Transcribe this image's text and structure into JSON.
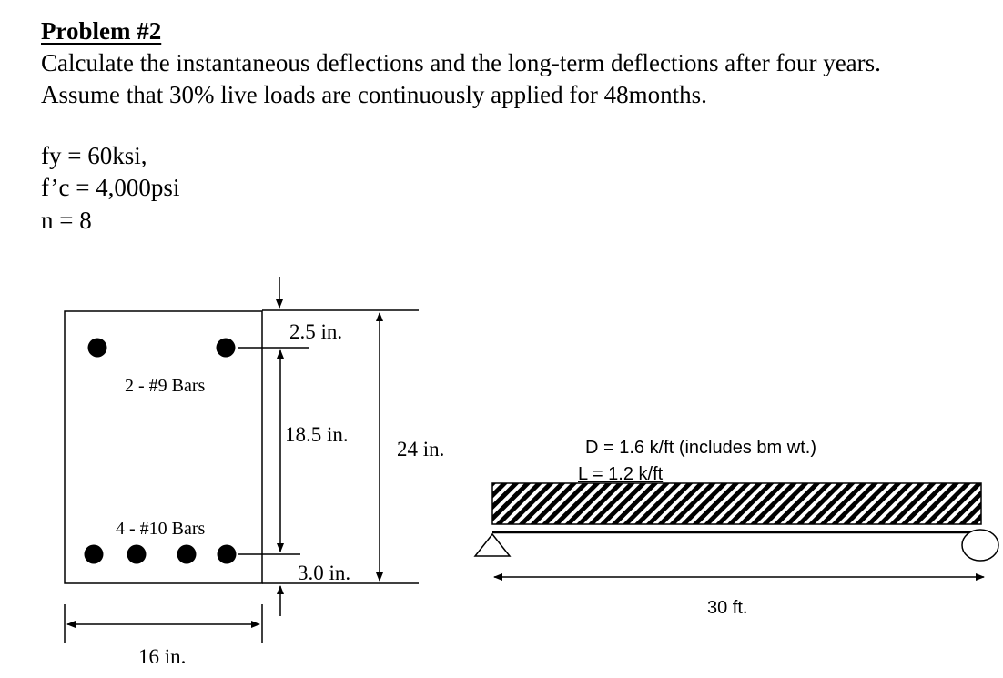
{
  "problem": {
    "title": "Problem #2",
    "line1": "Calculate the instantaneous deflections and the long-term deflections after four years.",
    "line2": "Assume that 30% live loads are continuously applied for 48months."
  },
  "given": {
    "fy": "fy = 60ksi,",
    "fc": "f’c = 4,000psi",
    "n": "n = 8"
  },
  "section": {
    "top_bars": "2 - #9 Bars",
    "bottom_bars": "4 - #10 Bars",
    "dim_top_cover": "2.5 in.",
    "dim_bar_spacing": "18.5 in.",
    "dim_bottom_cover": "3.0 in.",
    "dim_height": "24 in.",
    "dim_width": "16 in."
  },
  "beam": {
    "dead_load": "D = 1.6 k/ft (includes bm wt.)",
    "live_load": "L = 1.2 k/ft",
    "span": "30 ft."
  }
}
